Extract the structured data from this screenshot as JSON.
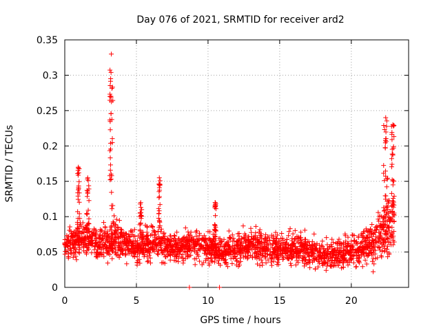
{
  "chart_data": {
    "type": "scatter",
    "title": "Day 076 of 2021, SRMTID for receiver ard2",
    "xlabel": "GPS time / hours",
    "ylabel": "SRMTID / TECUs",
    "xlim": [
      0,
      24
    ],
    "ylim": [
      0,
      0.35
    ],
    "x_ticks": [
      0,
      5,
      10,
      15,
      20
    ],
    "y_ticks": [
      0,
      0.05,
      0.1,
      0.15,
      0.2,
      0.25,
      0.3,
      0.35
    ],
    "x_tick_labels": [
      "0",
      "5",
      "10",
      "15",
      "20"
    ],
    "y_tick_labels": [
      "0",
      "0.05",
      "0.1",
      "0.15",
      "0.2",
      "0.25",
      "0.3",
      "0.35"
    ],
    "grid": true,
    "marker": "+",
    "color": "#ff0000",
    "series": [
      {
        "name": "ard2",
        "profile_x": [
          0.0,
          0.5,
          1.0,
          1.5,
          2.0,
          2.5,
          3.0,
          3.5,
          4.0,
          4.5,
          5.0,
          5.5,
          6.0,
          6.5,
          7.0,
          7.5,
          8.0,
          8.5,
          9.0,
          9.5,
          10.0,
          10.5,
          11.0,
          11.5,
          12.0,
          12.5,
          13.0,
          13.5,
          14.0,
          14.5,
          15.0,
          15.5,
          16.0,
          16.5,
          17.0,
          17.5,
          18.0,
          18.5,
          19.0,
          19.5,
          20.0,
          20.5,
          21.0,
          21.5,
          22.0,
          22.5,
          23.0
        ],
        "profile_mean_y": [
          0.062,
          0.063,
          0.068,
          0.07,
          0.064,
          0.062,
          0.065,
          0.07,
          0.063,
          0.06,
          0.055,
          0.06,
          0.062,
          0.065,
          0.06,
          0.057,
          0.055,
          0.058,
          0.06,
          0.058,
          0.057,
          0.055,
          0.05,
          0.052,
          0.056,
          0.058,
          0.06,
          0.06,
          0.058,
          0.055,
          0.052,
          0.053,
          0.055,
          0.055,
          0.05,
          0.048,
          0.046,
          0.044,
          0.047,
          0.05,
          0.055,
          0.055,
          0.058,
          0.065,
          0.075,
          0.085,
          0.095
        ],
        "profile_spread_y": [
          0.012,
          0.013,
          0.017,
          0.016,
          0.015,
          0.015,
          0.016,
          0.018,
          0.015,
          0.015,
          0.014,
          0.014,
          0.016,
          0.016,
          0.015,
          0.014,
          0.014,
          0.014,
          0.015,
          0.015,
          0.015,
          0.014,
          0.013,
          0.014,
          0.015,
          0.015,
          0.016,
          0.016,
          0.015,
          0.015,
          0.014,
          0.014,
          0.015,
          0.015,
          0.014,
          0.013,
          0.013,
          0.012,
          0.013,
          0.014,
          0.015,
          0.015,
          0.016,
          0.02,
          0.025,
          0.03,
          0.03
        ],
        "spikes": [
          {
            "x": 3.25,
            "y_max": 0.33,
            "width_hours": 0.35
          },
          {
            "x": 0.95,
            "y_max": 0.17,
            "width_hours": 0.25
          },
          {
            "x": 1.6,
            "y_max": 0.155,
            "width_hours": 0.3
          },
          {
            "x": 6.6,
            "y_max": 0.155,
            "width_hours": 0.2
          },
          {
            "x": 22.4,
            "y_max": 0.24,
            "width_hours": 0.5
          },
          {
            "x": 22.9,
            "y_max": 0.23,
            "width_hours": 0.3
          },
          {
            "x": 10.5,
            "y_max": 0.12,
            "width_hours": 0.2
          },
          {
            "x": 5.3,
            "y_max": 0.12,
            "width_hours": 0.25
          }
        ],
        "zero_points_x": [
          8.7,
          10.8
        ]
      }
    ]
  }
}
